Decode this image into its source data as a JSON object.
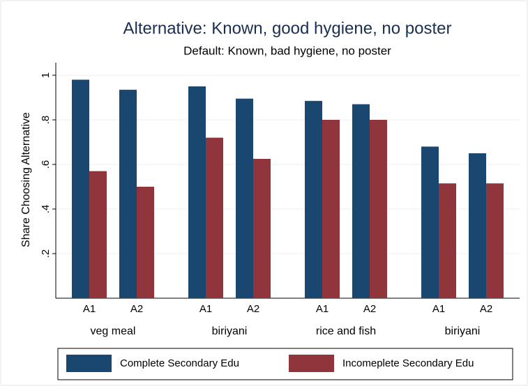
{
  "chart_data": {
    "type": "bar",
    "title": "Alternative: Known, good hygiene, no poster",
    "subtitle": "Default: Known, bad hygiene, no poster",
    "y_label": "Share Choosing Alternative",
    "categories": [
      "A1",
      "A2",
      "A1",
      "A2",
      "A1",
      "A2",
      "A1",
      "A2"
    ],
    "groups": [
      "veg meal",
      "biriyani",
      "rice and fish",
      "biriyani"
    ],
    "series": [
      {
        "name": "Complete Secondary Edu",
        "color": "#1a476f",
        "values": [
          0.98,
          0.935,
          0.95,
          0.895,
          0.885,
          0.87,
          0.68,
          0.65
        ]
      },
      {
        "name": "Incomeplete Secondary Edu",
        "color": "#90353b",
        "values": [
          0.57,
          0.5,
          0.72,
          0.625,
          0.8,
          0.8,
          0.515,
          0.515
        ]
      }
    ],
    "ylim": [
      0,
      1.05
    ],
    "yticks": [
      {
        "value": 0.2,
        "label": ".2"
      },
      {
        "value": 0.4,
        "label": ".4"
      },
      {
        "value": 0.6,
        "label": ".6"
      },
      {
        "value": 0.8,
        "label": ".8"
      },
      1
    ],
    "grid": true
  }
}
